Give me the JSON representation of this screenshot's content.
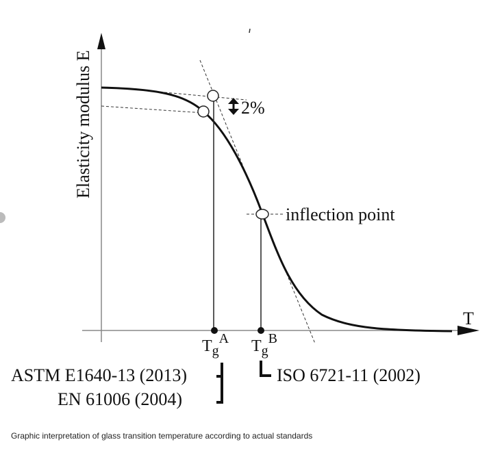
{
  "axes": {
    "y_label": "Elasticity modulus E",
    "x_label": "T"
  },
  "annotations": {
    "delta": "2%",
    "inflection": "inflection point"
  },
  "markers": [
    {
      "base": "T",
      "sub": "g",
      "sup": "A"
    },
    {
      "base": "T",
      "sub": "g",
      "sup": "B"
    }
  ],
  "standards": {
    "astm": "ASTM E1640-13 (2013)",
    "en": "EN 61006   (2004)",
    "iso": "ISO 6721-11 (2002)"
  },
  "caption": "Graphic interpretation of glass transition temperature according to actual standards"
}
